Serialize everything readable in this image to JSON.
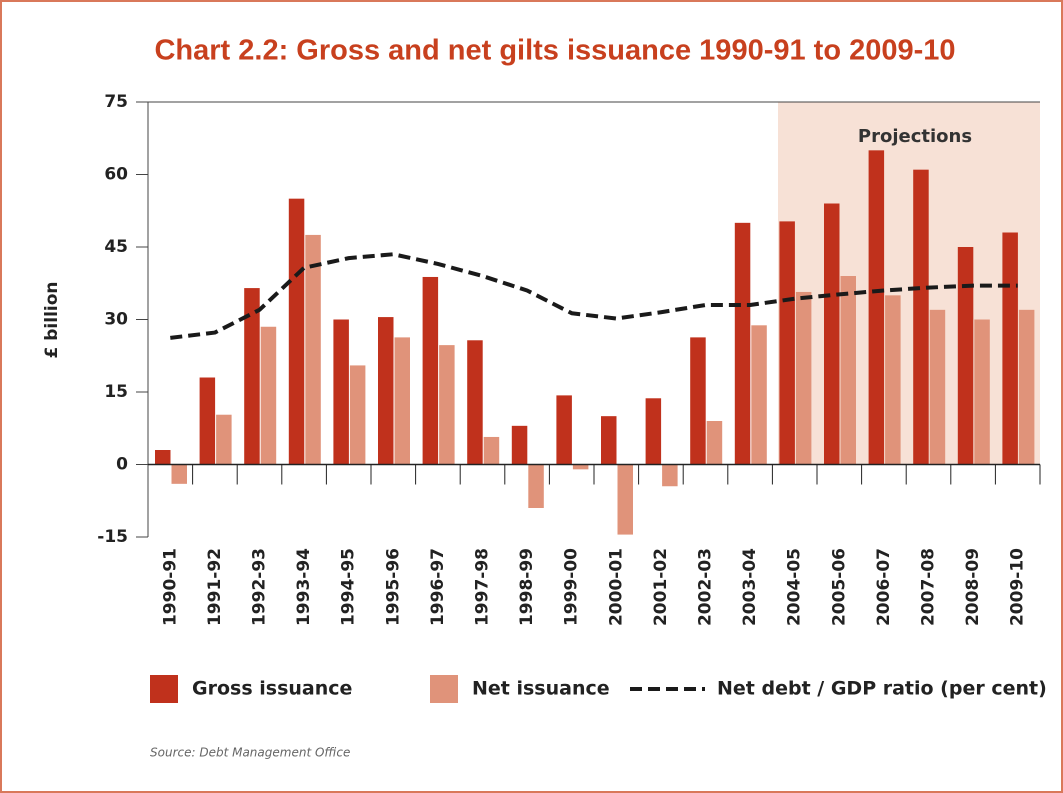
{
  "chart_data": {
    "type": "bar",
    "title": "Chart 2.2: Gross and net gilts issuance 1990-91 to 2009-10",
    "y_label": "£ billion",
    "annotation": "Projections",
    "source": "Source: Debt Management Office",
    "categories": [
      "1990-91",
      "1991-92",
      "1992-93",
      "1993-94",
      "1994-95",
      "1995-96",
      "1996-97",
      "1997-98",
      "1998-99",
      "1999-00",
      "2000-01",
      "2001-02",
      "2002-03",
      "2003-04",
      "2004-05",
      "2005-06",
      "2006-07",
      "2007-08",
      "2008-09",
      "2009-10"
    ],
    "series": [
      {
        "name": "Gross issuance",
        "type": "bar",
        "color": "#c0311c",
        "values": [
          3,
          18,
          36.5,
          55,
          30,
          30.5,
          38.8,
          25.7,
          8,
          14.3,
          10,
          13.7,
          26.3,
          50,
          50.3,
          54,
          65,
          61,
          45,
          48
        ]
      },
      {
        "name": "Net issuance",
        "type": "bar",
        "color": "#e0937a",
        "values": [
          -4,
          10.3,
          28.5,
          47.5,
          20.5,
          26.3,
          24.7,
          5.7,
          -9,
          -1,
          -14.5,
          -4.5,
          9,
          28.8,
          35.7,
          39,
          35,
          32,
          30,
          32
        ]
      },
      {
        "name": "Net debt / GDP ratio (per cent)",
        "type": "line",
        "color": "#1a1a1a",
        "dashed": true,
        "values": [
          26.2,
          27.3,
          32,
          40.7,
          42.7,
          43.5,
          41.5,
          39,
          36,
          31.3,
          30.2,
          31.5,
          33,
          33,
          34.3,
          35.2,
          36,
          36.6,
          37,
          37
        ]
      }
    ],
    "ylim": [
      -15,
      75
    ],
    "yticks": [
      -15,
      0,
      15,
      30,
      45,
      60,
      75
    ],
    "grid": false,
    "legend": "bottom"
  }
}
